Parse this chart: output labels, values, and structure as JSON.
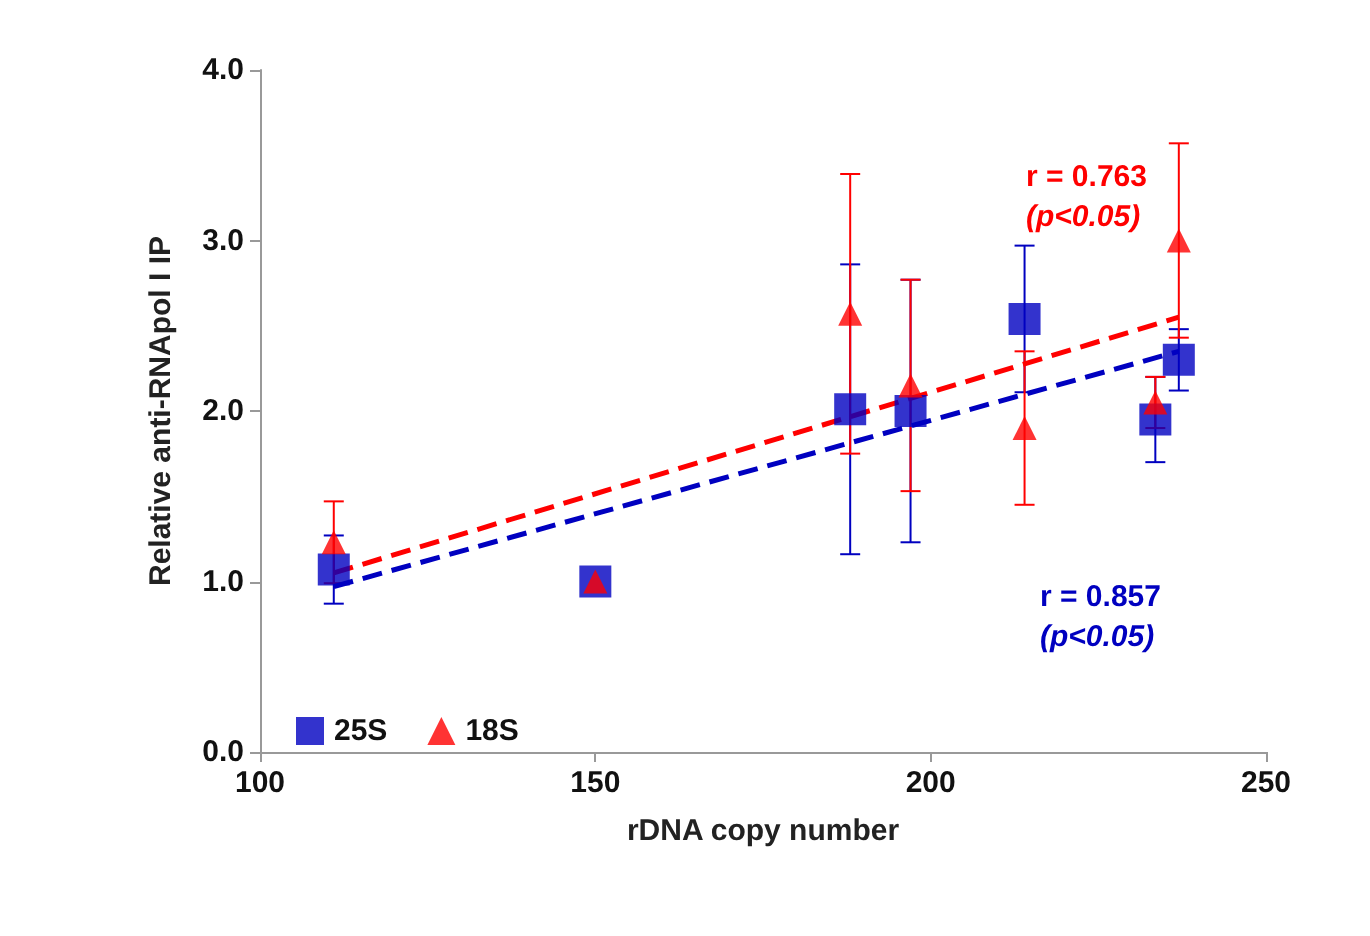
{
  "chart_data": {
    "type": "scatter",
    "xlabel": "rDNA copy number",
    "ylabel": "Relative anti-RNApol I IP",
    "xlim": [
      100,
      250
    ],
    "xticks": [
      100,
      150,
      200,
      250
    ],
    "ylim": [
      0,
      4
    ],
    "yticks": [
      {
        "value": 0,
        "label": "0.0"
      },
      {
        "value": 1,
        "label": "1.0"
      },
      {
        "value": 2,
        "label": "2.0"
      },
      {
        "value": 3,
        "label": "3.0"
      },
      {
        "value": 4,
        "label": "4.0"
      }
    ],
    "grid": false,
    "legend": "bottom left",
    "annotations": [
      "r = 0.763",
      "(p<0.05)",
      "r = 0.857",
      "(p<0.05)"
    ],
    "series": [
      {
        "name": "25S",
        "color": "#0000c0",
        "marker": "square",
        "x": [
          111,
          150,
          188,
          197,
          214,
          233.5,
          237
        ],
        "values": [
          1.07,
          1.0,
          2.01,
          2.0,
          2.54,
          1.95,
          2.3
        ],
        "errors": [
          0.2,
          null,
          0.85,
          0.77,
          0.43,
          0.25,
          0.18
        ]
      },
      {
        "name": "18S",
        "color": "#ff0000",
        "marker": "triangle",
        "x": [
          111,
          150,
          188,
          197,
          214,
          233.5,
          237
        ],
        "values": [
          1.23,
          1.0,
          2.57,
          2.15,
          1.9,
          2.05,
          3.0
        ],
        "errors": [
          0.24,
          null,
          0.82,
          0.62,
          0.45,
          0.15,
          0.57
        ]
      },
      {
        "type": "line",
        "color": "#0000c0",
        "line_style": "dashed",
        "marker": "none",
        "x": [
          111,
          237
        ],
        "values": [
          0.97,
          2.35
        ]
      },
      {
        "type": "line",
        "color": "#ff0000",
        "line_style": "dashed",
        "marker": "none",
        "x": [
          111,
          237
        ],
        "values": [
          1.05,
          2.55
        ]
      }
    ]
  }
}
